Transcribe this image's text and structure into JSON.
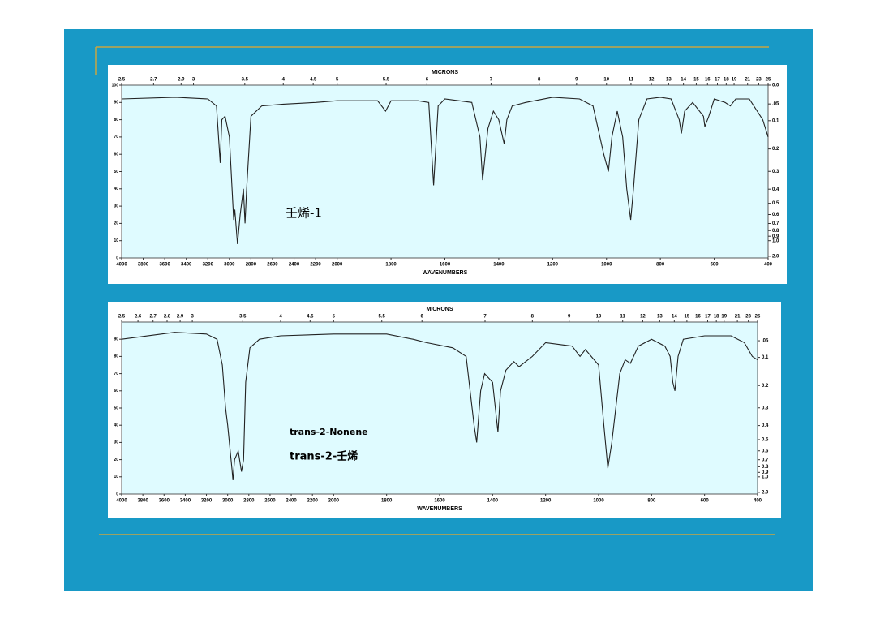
{
  "chart_data": [
    {
      "type": "line",
      "x_label": "WAVENUMBERS",
      "x2_label": "MICRONS",
      "xlim": [
        4000,
        400
      ],
      "xscale": {
        "type": "piecewise",
        "break": 2000,
        "ratio": 2.5
      },
      "xticks": [
        4000,
        3800,
        3600,
        3400,
        3200,
        3000,
        2800,
        2600,
        2400,
        2200,
        2000,
        1800,
        1600,
        1400,
        1200,
        1000,
        800,
        600,
        400
      ],
      "x2ticks": [
        2.5,
        2.7,
        2.9,
        3,
        3.5,
        4,
        4.5,
        5,
        5.5,
        6,
        7,
        8,
        9,
        10,
        11,
        12,
        13,
        14,
        15,
        16,
        17,
        18,
        19,
        21,
        23,
        25
      ],
      "ylim": [
        0,
        100
      ],
      "yticks": [
        0,
        10,
        20,
        30,
        40,
        50,
        60,
        70,
        80,
        90,
        100
      ],
      "y2ticks": [
        {
          "value": 0,
          "label": "0.0"
        },
        {
          "value": 0.05,
          "label": ".05"
        },
        0.1,
        0.2,
        0.3,
        0.4,
        0.5,
        0.6,
        0.7,
        0.8,
        0.9,
        {
          "value": 1,
          "label": "1.0"
        },
        {
          "value": 2,
          "label": "2.0"
        }
      ],
      "color": "#222222",
      "x": [
        4000,
        3500,
        3200,
        3120,
        3085,
        3070,
        3040,
        3000,
        2960,
        2950,
        2925,
        2900,
        2870,
        2855,
        2840,
        2800,
        2700,
        2500,
        2200,
        2000,
        1850,
        1820,
        1800,
        1700,
        1660,
        1642,
        1625,
        1600,
        1500,
        1470,
        1460,
        1440,
        1420,
        1400,
        1380,
        1370,
        1350,
        1300,
        1200,
        1100,
        1050,
        1010,
        993,
        980,
        960,
        940,
        925,
        910,
        900,
        880,
        850,
        800,
        760,
        730,
        722,
        710,
        680,
        640,
        635,
        620,
        600,
        560,
        540,
        520,
        470,
        420,
        400
      ],
      "values": [
        92,
        93,
        92,
        88,
        55,
        80,
        82,
        70,
        22,
        28,
        8,
        25,
        40,
        20,
        40,
        82,
        88,
        89,
        90,
        91,
        91,
        85,
        91,
        91,
        90,
        42,
        88,
        92,
        90,
        70,
        45,
        75,
        85,
        80,
        66,
        80,
        88,
        90,
        93,
        92,
        88,
        60,
        50,
        70,
        85,
        70,
        40,
        22,
        40,
        80,
        92,
        93,
        92,
        80,
        72,
        85,
        90,
        82,
        76,
        82,
        92,
        90,
        88,
        92,
        92,
        80,
        70
      ],
      "annotations": [
        {
          "text": "壬烯-1",
          "color": "#c0392b"
        }
      ]
    },
    {
      "type": "line",
      "x_label": "WAVENUMBERS",
      "x2_label": "MICRONS",
      "xlim": [
        4000,
        400
      ],
      "xscale": {
        "type": "piecewise",
        "break": 2000,
        "ratio": 2.5
      },
      "xticks": [
        4000,
        3800,
        3600,
        3400,
        3200,
        3000,
        2800,
        2600,
        2400,
        2200,
        2000,
        1800,
        1600,
        1400,
        1200,
        1000,
        800,
        600,
        400
      ],
      "x2ticks": [
        2.5,
        2.6,
        2.7,
        2.8,
        2.9,
        3,
        3.5,
        4,
        4.5,
        5,
        5.5,
        6,
        7,
        8,
        9,
        10,
        11,
        12,
        13,
        14,
        15,
        16,
        17,
        18,
        19,
        21,
        23,
        25
      ],
      "ylim": [
        0,
        100
      ],
      "yticks": [
        0,
        10,
        20,
        30,
        40,
        50,
        60,
        70,
        80,
        90
      ],
      "y2ticks": [
        {
          "value": 0.05,
          "label": ".05"
        },
        0.1,
        0.2,
        0.3,
        0.4,
        0.5,
        0.6,
        0.7,
        0.8,
        0.9,
        {
          "value": 1,
          "label": "1.0"
        },
        {
          "value": 2,
          "label": "2.0"
        }
      ],
      "color": "#222222",
      "x": [
        4000,
        3500,
        3200,
        3100,
        3050,
        3020,
        3000,
        2960,
        2950,
        2935,
        2900,
        2870,
        2850,
        2830,
        2810,
        2790,
        2700,
        2500,
        2000,
        1800,
        1700,
        1650,
        1550,
        1500,
        1470,
        1460,
        1445,
        1430,
        1400,
        1380,
        1370,
        1350,
        1320,
        1300,
        1250,
        1200,
        1100,
        1070,
        1050,
        1000,
        980,
        965,
        950,
        920,
        900,
        880,
        850,
        800,
        750,
        730,
        720,
        712,
        700,
        680,
        600,
        500,
        450,
        420,
        400
      ],
      "values": [
        90,
        94,
        93,
        90,
        75,
        50,
        40,
        15,
        8,
        20,
        25,
        13,
        20,
        65,
        75,
        85,
        90,
        92,
        93,
        93,
        90,
        88,
        85,
        80,
        40,
        30,
        60,
        70,
        65,
        36,
        60,
        72,
        77,
        74,
        80,
        88,
        86,
        80,
        84,
        75,
        40,
        15,
        30,
        70,
        78,
        76,
        86,
        90,
        86,
        80,
        65,
        60,
        80,
        90,
        92,
        92,
        88,
        80,
        78
      ],
      "annotations": [
        {
          "text": "trans-2-Nonene",
          "color": "#000000"
        },
        {
          "text": "trans-2-壬烯",
          "color": "#000000"
        }
      ]
    }
  ]
}
